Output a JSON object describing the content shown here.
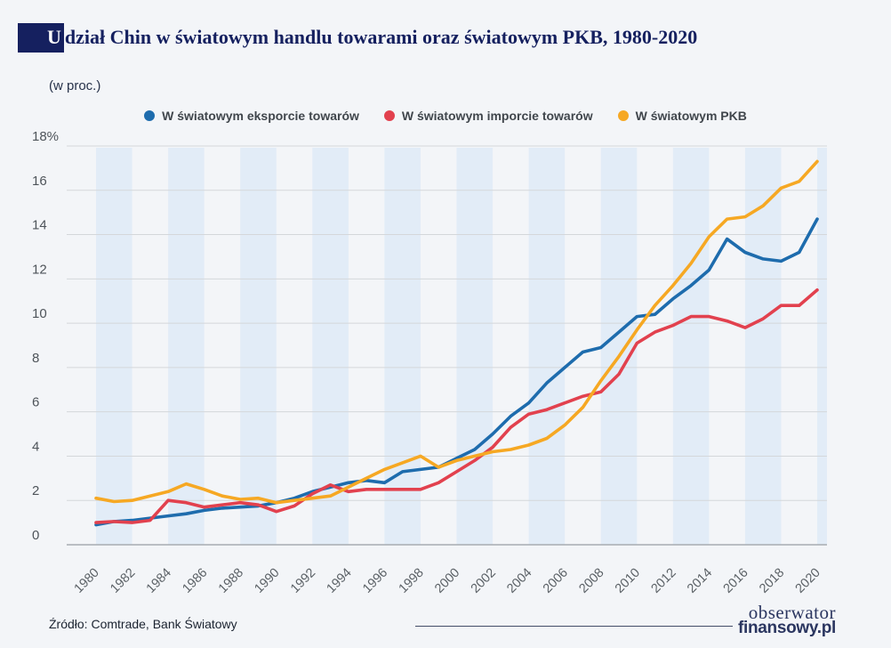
{
  "page": {
    "background": "#f3f5f8"
  },
  "header": {
    "title_letter": "U",
    "title_rest": "dział Chin w światowym handlu towarami oraz światowym PKB, 1980-2020",
    "units_note": "(w proc.)"
  },
  "chart_data": {
    "type": "line",
    "title": "Udział Chin w światowym handlu towarami oraz światowym PKB, 1980-2020",
    "ylabel": "(w proc.)",
    "ylim": [
      0,
      18
    ],
    "ytick_step": 2,
    "y_tick_labels": [
      "0",
      "2",
      "4",
      "6",
      "8",
      "10",
      "12",
      "14",
      "16",
      "18%"
    ],
    "grid": "horizontal",
    "legend_position": "top",
    "stripe_color": "#e2ecf7",
    "x": [
      1980,
      1981,
      1982,
      1983,
      1984,
      1985,
      1986,
      1987,
      1988,
      1989,
      1990,
      1991,
      1992,
      1993,
      1994,
      1995,
      1996,
      1997,
      1998,
      1999,
      2000,
      2001,
      2002,
      2003,
      2004,
      2005,
      2006,
      2007,
      2008,
      2009,
      2010,
      2011,
      2012,
      2013,
      2014,
      2015,
      2016,
      2017,
      2018,
      2019,
      2020
    ],
    "x_tick_labels": [
      "1980",
      "1982",
      "1984",
      "1986",
      "1988",
      "1990",
      "1992",
      "1994",
      "1996",
      "1998",
      "2000",
      "2002",
      "2004",
      "2006",
      "2008",
      "2010",
      "2012",
      "2014",
      "2016",
      "2018",
      "2020"
    ],
    "series": [
      {
        "name": "W światowym eksporcie towarów",
        "color": "#1e6cad",
        "values": [
          0.9,
          1.05,
          1.1,
          1.2,
          1.3,
          1.4,
          1.55,
          1.65,
          1.7,
          1.75,
          1.9,
          2.1,
          2.4,
          2.6,
          2.8,
          2.9,
          2.8,
          3.3,
          3.4,
          3.5,
          3.9,
          4.3,
          5.0,
          5.8,
          6.4,
          7.3,
          8.0,
          8.7,
          8.9,
          9.6,
          10.3,
          10.4,
          11.1,
          11.7,
          12.4,
          13.8,
          13.2,
          12.9,
          12.8,
          13.2,
          14.7
        ]
      },
      {
        "name": "W światowym imporcie towarów",
        "color": "#e2414e",
        "values": [
          1.0,
          1.05,
          1.0,
          1.1,
          2.0,
          1.9,
          1.7,
          1.8,
          1.9,
          1.8,
          1.5,
          1.75,
          2.3,
          2.7,
          2.4,
          2.5,
          2.5,
          2.5,
          2.5,
          2.8,
          3.3,
          3.8,
          4.4,
          5.3,
          5.9,
          6.1,
          6.4,
          6.7,
          6.9,
          7.7,
          9.1,
          9.6,
          9.9,
          10.3,
          10.3,
          10.1,
          9.8,
          10.2,
          10.8,
          10.8,
          11.5
        ]
      },
      {
        "name": "W światowym PKB",
        "color": "#f6a823",
        "values": [
          2.1,
          1.95,
          2.0,
          2.2,
          2.4,
          2.75,
          2.5,
          2.2,
          2.05,
          2.1,
          1.9,
          2.0,
          2.1,
          2.2,
          2.6,
          3.0,
          3.4,
          3.7,
          4.0,
          3.5,
          3.8,
          4.0,
          4.2,
          4.3,
          4.5,
          4.8,
          5.4,
          6.2,
          7.4,
          8.5,
          9.7,
          10.8,
          11.7,
          12.7,
          13.9,
          14.7,
          14.8,
          15.3,
          16.1,
          16.4,
          17.3
        ]
      }
    ]
  },
  "footer": {
    "source": "Źródło: Comtrade, Bank Światowy",
    "logo_line1": "obserwator",
    "logo_line2": "finansowy.pl"
  }
}
